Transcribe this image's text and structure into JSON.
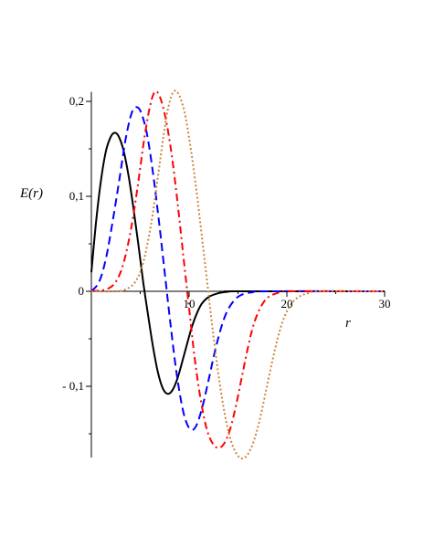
{
  "chart_data": {
    "type": "line",
    "title": "",
    "xlabel": "r",
    "ylabel": "E(r)",
    "xlim": [
      0,
      30
    ],
    "ylim": [
      -0.175,
      0.21
    ],
    "x_ticks": [
      {
        "value": 10,
        "label": "10"
      },
      {
        "value": 20,
        "label": "20"
      },
      {
        "value": 30,
        "label": "30"
      }
    ],
    "y_ticks": [
      {
        "value": 0.2,
        "label": "0,2"
      },
      {
        "value": 0.1,
        "label": "0,1"
      },
      {
        "value": 0,
        "label": "0"
      },
      {
        "value": -0.1,
        "label": "- 0,1"
      }
    ],
    "grid": false,
    "legend": "none",
    "series": [
      {
        "color": "#000000",
        "dash": "solid",
        "points": [
          [
            0,
            0.02
          ],
          [
            0.5,
            0.075
          ],
          [
            1,
            0.118
          ],
          [
            1.5,
            0.148
          ],
          [
            2,
            0.163
          ],
          [
            2.4,
            0.167
          ],
          [
            2.8,
            0.163
          ],
          [
            3.3,
            0.148
          ],
          [
            3.8,
            0.122
          ],
          [
            4.3,
            0.088
          ],
          [
            4.8,
            0.05
          ],
          [
            5.3,
            0.01
          ],
          [
            5.8,
            -0.025
          ],
          [
            6.3,
            -0.058
          ],
          [
            6.8,
            -0.085
          ],
          [
            7.3,
            -0.102
          ],
          [
            7.8,
            -0.108
          ],
          [
            8.3,
            -0.104
          ],
          [
            8.8,
            -0.092
          ],
          [
            9.3,
            -0.074
          ],
          [
            9.8,
            -0.055
          ],
          [
            10.3,
            -0.037
          ],
          [
            10.8,
            -0.023
          ],
          [
            11.3,
            -0.013
          ],
          [
            12,
            -0.006
          ],
          [
            13,
            -0.002
          ],
          [
            14,
            -0.0005
          ],
          [
            15,
            0
          ],
          [
            30,
            0
          ]
        ]
      },
      {
        "color": "#0000ff",
        "dash": "dashed",
        "points": [
          [
            0,
            0
          ],
          [
            0.8,
            0.01
          ],
          [
            1.5,
            0.035
          ],
          [
            2.2,
            0.075
          ],
          [
            2.9,
            0.12
          ],
          [
            3.5,
            0.16
          ],
          [
            4.1,
            0.187
          ],
          [
            4.6,
            0.194
          ],
          [
            5.1,
            0.188
          ],
          [
            5.7,
            0.165
          ],
          [
            6.3,
            0.125
          ],
          [
            6.9,
            0.075
          ],
          [
            7.5,
            0.02
          ],
          [
            8.1,
            -0.035
          ],
          [
            8.7,
            -0.085
          ],
          [
            9.3,
            -0.122
          ],
          [
            9.8,
            -0.14
          ],
          [
            10.3,
            -0.146
          ],
          [
            10.8,
            -0.14
          ],
          [
            11.4,
            -0.12
          ],
          [
            12,
            -0.093
          ],
          [
            12.6,
            -0.065
          ],
          [
            13.2,
            -0.041
          ],
          [
            13.8,
            -0.023
          ],
          [
            14.5,
            -0.011
          ],
          [
            15.3,
            -0.004
          ],
          [
            16.5,
            -0.001
          ],
          [
            18,
            0
          ],
          [
            30,
            0
          ]
        ]
      },
      {
        "color": "#ff0000",
        "dash": "dashdot",
        "points": [
          [
            0,
            0
          ],
          [
            1.5,
            0.002
          ],
          [
            2.5,
            0.01
          ],
          [
            3.3,
            0.03
          ],
          [
            4.1,
            0.068
          ],
          [
            4.8,
            0.115
          ],
          [
            5.4,
            0.16
          ],
          [
            6,
            0.195
          ],
          [
            6.5,
            0.21
          ],
          [
            7,
            0.205
          ],
          [
            7.6,
            0.182
          ],
          [
            8.2,
            0.145
          ],
          [
            8.8,
            0.095
          ],
          [
            9.4,
            0.038
          ],
          [
            10,
            -0.018
          ],
          [
            10.6,
            -0.073
          ],
          [
            11.2,
            -0.115
          ],
          [
            11.8,
            -0.145
          ],
          [
            12.4,
            -0.16
          ],
          [
            13,
            -0.165
          ],
          [
            13.6,
            -0.16
          ],
          [
            14.2,
            -0.145
          ],
          [
            14.8,
            -0.12
          ],
          [
            15.4,
            -0.09
          ],
          [
            16,
            -0.06
          ],
          [
            16.6,
            -0.035
          ],
          [
            17.3,
            -0.017
          ],
          [
            18,
            -0.007
          ],
          [
            19,
            -0.002
          ],
          [
            20.5,
            0
          ],
          [
            30,
            0
          ]
        ]
      },
      {
        "color": "#cd853f",
        "dash": "dotted",
        "points": [
          [
            0,
            0
          ],
          [
            2.5,
            0
          ],
          [
            3.5,
            0.002
          ],
          [
            4.5,
            0.01
          ],
          [
            5.3,
            0.03
          ],
          [
            6.1,
            0.07
          ],
          [
            6.8,
            0.12
          ],
          [
            7.4,
            0.165
          ],
          [
            7.9,
            0.195
          ],
          [
            8.4,
            0.21
          ],
          [
            8.9,
            0.208
          ],
          [
            9.5,
            0.19
          ],
          [
            10.1,
            0.155
          ],
          [
            10.7,
            0.11
          ],
          [
            11.3,
            0.058
          ],
          [
            11.9,
            0.005
          ],
          [
            12.5,
            -0.048
          ],
          [
            13.1,
            -0.095
          ],
          [
            13.7,
            -0.132
          ],
          [
            14.3,
            -0.158
          ],
          [
            14.9,
            -0.172
          ],
          [
            15.5,
            -0.176
          ],
          [
            16.1,
            -0.17
          ],
          [
            16.7,
            -0.155
          ],
          [
            17.3,
            -0.132
          ],
          [
            17.9,
            -0.103
          ],
          [
            18.5,
            -0.074
          ],
          [
            19.1,
            -0.048
          ],
          [
            19.7,
            -0.028
          ],
          [
            20.4,
            -0.014
          ],
          [
            21.2,
            -0.006
          ],
          [
            22.2,
            -0.002
          ],
          [
            23.5,
            0
          ],
          [
            30,
            0
          ]
        ]
      }
    ]
  }
}
